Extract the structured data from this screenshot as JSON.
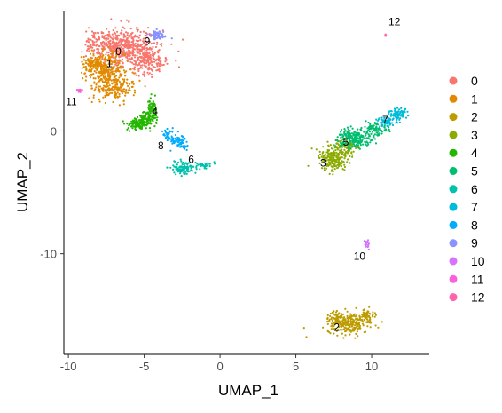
{
  "chart_data": {
    "type": "scatter",
    "xlabel": "UMAP_1",
    "ylabel": "UMAP_2",
    "xlim": [
      -10.3,
      13.8
    ],
    "ylim": [
      -18.2,
      9.8
    ],
    "xticks": [
      -10,
      -5,
      0,
      5,
      10
    ],
    "yticks": [
      -10,
      0
    ],
    "xtick_labels": [
      "-10",
      "-5",
      "0",
      "5",
      "10"
    ],
    "ytick_labels": [
      "-10",
      "0"
    ],
    "grid": false,
    "legend_position": "right",
    "series": [
      {
        "name": "0",
        "color": "#F8766D",
        "label": "0",
        "label_pos": [
          -6.7,
          6.2
        ],
        "blobs": [
          [
            -6.0,
            6.8,
            2.0,
            1.5,
            420
          ],
          [
            -4.8,
            5.8,
            1.3,
            1.2,
            180
          ],
          [
            -7.4,
            7.2,
            1.3,
            0.9,
            160
          ]
        ]
      },
      {
        "name": "1",
        "color": "#E18A00",
        "label": "1",
        "label_pos": [
          -7.3,
          5.2
        ],
        "blobs": [
          [
            -7.6,
            5.1,
            1.2,
            1.1,
            260
          ],
          [
            -7.0,
            3.6,
            1.2,
            1.0,
            200
          ],
          [
            -8.5,
            5.5,
            0.6,
            0.6,
            60
          ]
        ]
      },
      {
        "name": "2",
        "color": "#BE9C00",
        "label": "2",
        "label_pos": [
          7.7,
          -16.3
        ],
        "blobs": [
          [
            8.5,
            -15.7,
            1.3,
            0.7,
            240
          ],
          [
            9.6,
            -15.1,
            0.5,
            0.5,
            60
          ],
          [
            7.7,
            -15.1,
            0.4,
            0.5,
            40
          ]
        ]
      },
      {
        "name": "3",
        "color": "#8CAB00",
        "label": "3",
        "label_pos": [
          6.8,
          -2.9
        ],
        "blobs": [
          [
            7.4,
            -2.3,
            0.9,
            1.0,
            200
          ],
          [
            8.3,
            -1.4,
            0.8,
            0.7,
            100
          ]
        ]
      },
      {
        "name": "4",
        "color": "#24B700",
        "label": "4",
        "label_pos": [
          -4.3,
          1.3
        ],
        "blobs": [
          [
            -5.5,
            0.5,
            0.6,
            0.4,
            90
          ],
          [
            -4.5,
            1.6,
            0.4,
            0.9,
            90
          ],
          [
            -4.9,
            1.0,
            0.5,
            0.5,
            60
          ]
        ]
      },
      {
        "name": "5",
        "color": "#00BE70",
        "label": "5",
        "label_pos": [
          8.3,
          -1.2
        ],
        "blobs": [
          [
            9.0,
            -0.8,
            1.0,
            0.6,
            140
          ],
          [
            10.2,
            0.1,
            0.8,
            0.5,
            90
          ],
          [
            8.4,
            -0.3,
            0.6,
            0.5,
            60
          ]
        ]
      },
      {
        "name": "6",
        "color": "#00C1AB",
        "label": "6",
        "label_pos": [
          -1.9,
          -2.6
        ],
        "blobs": [
          [
            -2.4,
            -3.0,
            0.6,
            0.5,
            100
          ],
          [
            -1.1,
            -2.8,
            0.6,
            0.25,
            40
          ]
        ]
      },
      {
        "name": "7",
        "color": "#00BBDA",
        "label": "7",
        "label_pos": [
          10.9,
          0.6
        ],
        "blobs": [
          [
            11.7,
            1.4,
            0.5,
            0.4,
            80
          ],
          [
            11.0,
            0.8,
            0.6,
            0.4,
            60
          ]
        ]
      },
      {
        "name": "8",
        "color": "#00ACFC",
        "label": "8",
        "label_pos": [
          -3.9,
          -1.5
        ],
        "blobs": [
          [
            -2.8,
            -0.8,
            0.5,
            0.5,
            50
          ],
          [
            -3.5,
            -0.2,
            0.3,
            0.4,
            30
          ],
          [
            -2.4,
            -1.2,
            0.3,
            0.3,
            20
          ]
        ]
      },
      {
        "name": "9",
        "color": "#8B93FF",
        "label": "9",
        "label_pos": [
          -4.8,
          7.0
        ],
        "blobs": [
          [
            -4.1,
            7.8,
            0.45,
            0.35,
            70
          ]
        ]
      },
      {
        "name": "10",
        "color": "#D575FE",
        "label": "10",
        "label_pos": [
          9.2,
          -10.5
        ],
        "blobs": [
          [
            9.7,
            -9.2,
            0.15,
            0.35,
            18
          ]
        ]
      },
      {
        "name": "11",
        "color": "#F962DD",
        "label": "11",
        "label_pos": [
          -9.8,
          2.1
        ],
        "blobs": [
          [
            -9.2,
            3.3,
            0.18,
            0.2,
            12
          ]
        ]
      },
      {
        "name": "12",
        "color": "#FF65AC",
        "label": "12",
        "label_pos": [
          11.5,
          8.6
        ],
        "blobs": [
          [
            10.9,
            7.8,
            0.08,
            0.08,
            5
          ]
        ]
      }
    ]
  }
}
